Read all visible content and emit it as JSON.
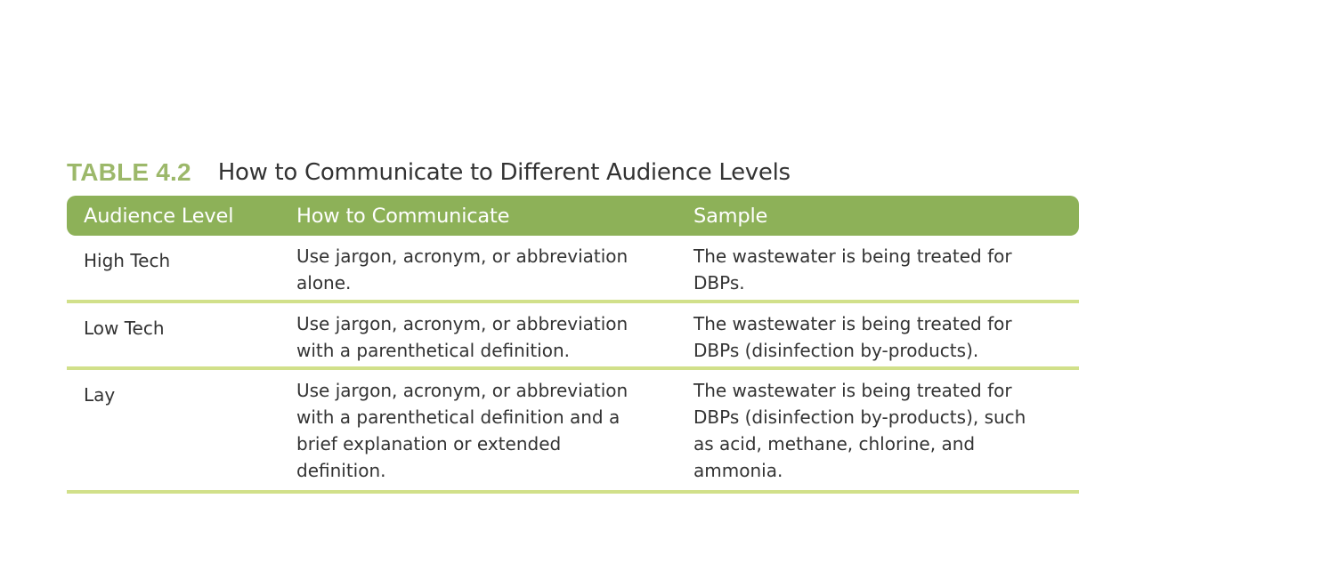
{
  "caption": {
    "label": "TABLE 4.2",
    "title": "How to Communicate to Different Audience Levels"
  },
  "columns": [
    "Audience Level",
    "How to Communicate",
    "Sample"
  ],
  "rows": [
    {
      "level": "High Tech",
      "how": [
        "Use jargon, acronym, or abbreviation",
        "alone."
      ],
      "sample": [
        "The wastewater is being treated for",
        "DBPs."
      ]
    },
    {
      "level": "Low Tech",
      "how": [
        "Use jargon, acronym, or abbreviation",
        "with a parenthetical definition."
      ],
      "sample": [
        "The wastewater is being treated for",
        "DBPs (disinfection by-products)."
      ]
    },
    {
      "level": "Lay",
      "how": [
        "Use jargon, acronym, or abbreviation",
        "with a parenthetical definition and a",
        "brief explanation or extended",
        "definition."
      ],
      "sample": [
        "The wastewater is being treated for",
        "DBPs (disinfection by-products), such",
        "as acid, methane, chlorine, and",
        "ammonia."
      ]
    }
  ],
  "colors": {
    "header_bg": "#8db158",
    "caption_label": "#9cb86a",
    "row_rule": "#d1e08a"
  }
}
